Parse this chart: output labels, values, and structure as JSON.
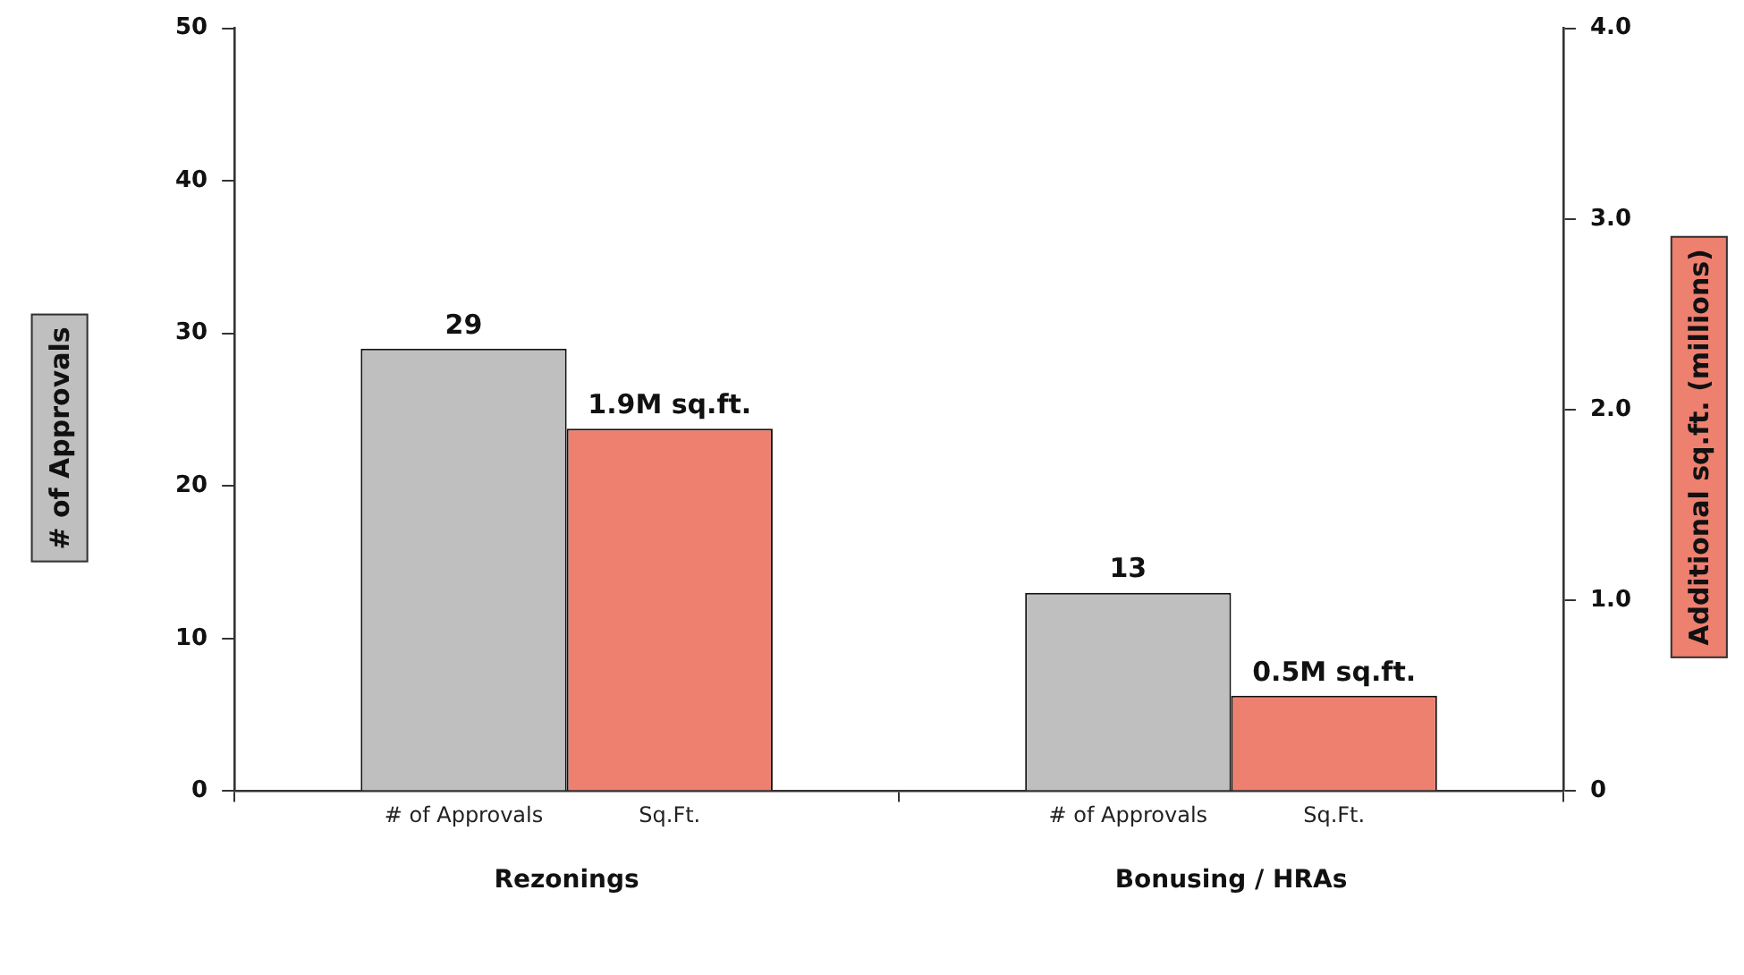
{
  "chart_data": {
    "type": "bar",
    "ylabel": "# of Approvals",
    "y2label": "Additional sq.ft. (millions)",
    "categories": [
      "Rezonings",
      "Bonusing / HRAs"
    ],
    "series": [
      {
        "name": "# of Approvals",
        "color": "#bfbfbf",
        "values": [
          29,
          13
        ],
        "value_labels": [
          "29",
          "13"
        ]
      },
      {
        "name": "Sq.Ft.",
        "color": "#ee8070",
        "values": [
          1.9,
          0.5
        ],
        "axis": "y2",
        "value_labels": [
          "1.9M sq.ft.",
          "0.5M sq.ft."
        ]
      }
    ],
    "ylim": [
      0,
      50
    ],
    "yticks": [
      0,
      10,
      20,
      30,
      40,
      50
    ],
    "y2lim": [
      0,
      4
    ],
    "y2ticks": [
      0,
      {
        "value": 1,
        "label": "1.0"
      },
      {
        "value": 2,
        "label": "2.0"
      },
      {
        "value": 3,
        "label": "3.0"
      },
      {
        "value": 4,
        "label": "4.0"
      }
    ],
    "grid": false,
    "legend": false
  }
}
